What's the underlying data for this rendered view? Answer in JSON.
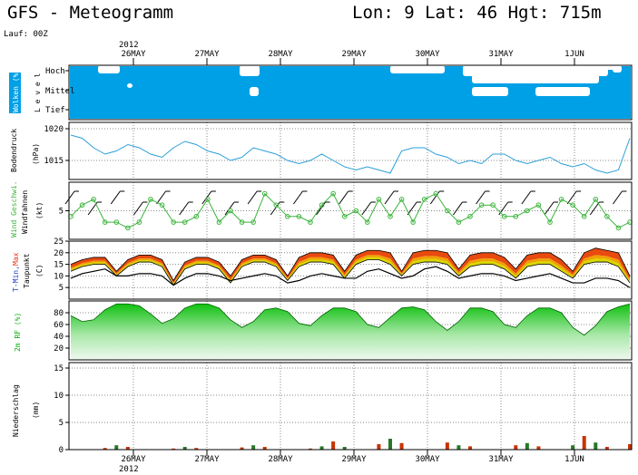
{
  "header": {
    "title": "GFS - Meteogramm",
    "location": "Lon: 9 Lat: 46 Hgt: 715m",
    "run": "Lauf: 00Z"
  },
  "dates": {
    "year": "2012",
    "days": [
      "26MAY",
      "27MAY",
      "28MAY",
      "29MAY",
      "30MAY",
      "31MAY",
      "1JUN"
    ]
  },
  "panels": {
    "clouds": {
      "title": "Wolken (%)",
      "side": "L e v e l",
      "levels": [
        "Hoch",
        "Mittel",
        "Tief"
      ]
    },
    "pressure": {
      "title": "Bodendruck",
      "unit": "(hPa)",
      "ticks": [
        "1020",
        "1015"
      ]
    },
    "wind": {
      "title_a": "Wind Geschwi.",
      "title_b": "Windfahnen",
      "unit": "(kt)",
      "ticks": [
        "5"
      ]
    },
    "temp": {
      "title_a": "T-Min,",
      "title_b": "Max",
      "title_c": "Taupunkt",
      "unit": "(C)",
      "ticks": [
        "25",
        "20",
        "15",
        "10",
        "5"
      ]
    },
    "rh": {
      "title": "2m RF (%)",
      "ticks": [
        "80",
        "60",
        "40",
        "20"
      ]
    },
    "precip": {
      "title": "Niederschlag",
      "unit": "(mm)",
      "ticks": [
        "15",
        "10",
        "5",
        "0"
      ]
    }
  },
  "colors": {
    "cloud_bg": "#00a0e6",
    "pressure_line": "#2a9fd8",
    "wind_line": "#3cb43c",
    "temp_max": "#e84a10",
    "temp_mid": "#f0a000",
    "temp_low": "#d8d800",
    "rh_fill": "#20c820",
    "precip_red": "#c83200",
    "precip_green": "#287828"
  },
  "chart_data": [
    {
      "type": "line",
      "name": "Bodendruck",
      "x_step_hours": 6,
      "ylim": [
        1012,
        1021
      ],
      "values": [
        1019,
        1018.5,
        1017,
        1016,
        1016.5,
        1017.5,
        1017,
        1016,
        1015.5,
        1017,
        1018,
        1017.5,
        1016.5,
        1016,
        1015,
        1015.5,
        1017,
        1016.5,
        1016,
        1015,
        1014.5,
        1015,
        1016,
        1015,
        1014,
        1013.5,
        1014,
        1013.5,
        1013,
        1016.5,
        1017,
        1017,
        1016,
        1015.5,
        1014.5,
        1015,
        1014.5,
        1016,
        1016,
        1015,
        1014.5,
        1015,
        1015.5,
        1014.5,
        1014,
        1014.5,
        1013.5,
        1013,
        1013.5,
        1018.5
      ]
    },
    {
      "type": "line",
      "name": "Wind Geschwi.",
      "x_step_hours": 6,
      "ylim": [
        0,
        10
      ],
      "values": [
        4,
        6,
        7,
        3,
        3,
        2,
        3,
        7,
        6,
        3,
        3,
        4,
        7,
        3,
        5,
        3,
        3,
        8,
        6,
        4,
        4,
        3,
        6,
        8,
        4,
        5,
        3,
        7,
        4,
        7,
        3,
        7,
        8,
        5,
        3,
        4,
        6,
        6,
        4,
        4,
        5,
        6,
        3,
        7,
        6,
        4,
        7,
        4,
        2,
        3
      ]
    },
    {
      "type": "area",
      "name": "T-Min, Max, Taupunkt",
      "x_step_hours": 6,
      "ylim": [
        0,
        25
      ],
      "t_max": [
        15,
        17,
        18,
        18,
        12,
        17,
        19,
        19,
        17,
        8,
        16,
        18,
        18,
        16,
        10,
        17,
        19,
        19,
        17,
        10,
        18,
        20,
        20,
        19,
        12,
        19,
        21,
        21,
        20,
        12,
        20,
        21,
        21,
        20,
        13,
        19,
        20,
        20,
        18,
        13,
        19,
        20,
        20,
        17,
        12,
        20,
        22,
        21,
        20,
        10
      ],
      "t_min": [
        12,
        14,
        15,
        15,
        10,
        14,
        16,
        16,
        14,
        6,
        13,
        15,
        15,
        13,
        7,
        14,
        16,
        16,
        14,
        8,
        14,
        16,
        16,
        15,
        9,
        15,
        17,
        17,
        15,
        10,
        15,
        16,
        16,
        15,
        10,
        14,
        15,
        15,
        13,
        9,
        14,
        15,
        15,
        12,
        9,
        15,
        16,
        16,
        14,
        7
      ],
      "dewpoint": [
        9,
        11,
        12,
        13,
        10,
        10,
        11,
        11,
        10,
        6,
        9,
        11,
        11,
        10,
        8,
        9,
        10,
        11,
        10,
        7,
        8,
        10,
        11,
        10,
        9,
        9,
        12,
        13,
        11,
        9,
        10,
        13,
        14,
        12,
        9,
        10,
        11,
        11,
        10,
        8,
        9,
        10,
        11,
        9,
        7,
        7,
        9,
        9,
        8,
        5
      ]
    },
    {
      "type": "area",
      "name": "2m RF (%)",
      "x_step_hours": 6,
      "ylim": [
        0,
        100
      ],
      "values": [
        75,
        65,
        68,
        85,
        95,
        95,
        92,
        78,
        62,
        70,
        88,
        95,
        95,
        88,
        68,
        55,
        65,
        85,
        88,
        82,
        62,
        58,
        75,
        88,
        88,
        82,
        60,
        55,
        72,
        88,
        90,
        85,
        65,
        50,
        65,
        88,
        88,
        82,
        60,
        55,
        75,
        88,
        88,
        80,
        55,
        42,
        58,
        82,
        90,
        95
      ]
    },
    {
      "type": "bar",
      "name": "Niederschlag",
      "x_step_hours": 6,
      "ylim": [
        0,
        16
      ],
      "values": [
        0,
        0,
        0,
        0.3,
        0.8,
        0.5,
        0,
        0,
        0,
        0.2,
        0.5,
        0.3,
        0,
        0,
        0,
        0.4,
        0.8,
        0.5,
        0,
        0,
        0,
        0.2,
        0.6,
        1.5,
        0.5,
        0,
        0,
        1.0,
        2.0,
        1.2,
        0,
        0,
        0,
        1.3,
        0.8,
        0.6,
        0,
        0,
        0,
        0.8,
        1.2,
        0.6,
        0,
        0,
        0.8,
        2.5,
        1.3,
        0.5,
        0,
        1.0
      ]
    }
  ]
}
